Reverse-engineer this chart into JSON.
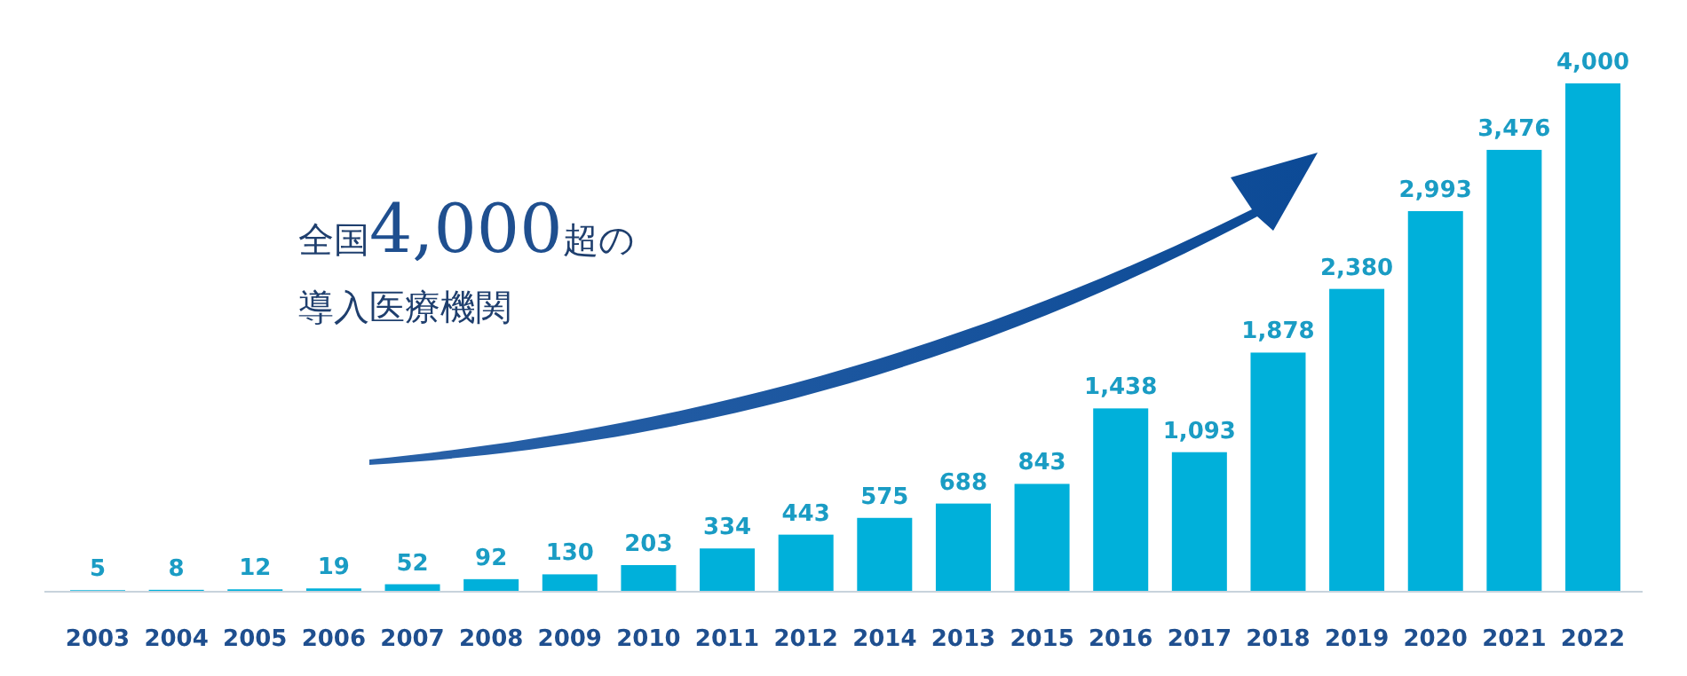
{
  "chart_data": {
    "type": "bar",
    "categories": [
      "2003",
      "2004",
      "2005",
      "2006",
      "2007",
      "2008",
      "2009",
      "2010",
      "2011",
      "2012",
      "2014",
      "2013",
      "2015",
      "2016",
      "2017",
      "2018",
      "2019",
      "2020",
      "2021",
      "2022"
    ],
    "values": [
      5,
      8,
      12,
      19,
      52,
      92,
      130,
      203,
      334,
      443,
      575,
      688,
      843,
      1438,
      1093,
      1878,
      2380,
      2993,
      3476,
      4000
    ],
    "color": "#00b0da",
    "value_labels": [
      "5",
      "8",
      "12",
      "19",
      "52",
      "92",
      "130",
      "203",
      "334",
      "443",
      "575",
      "688",
      "843",
      "1,438",
      "1,093",
      "1,878",
      "2,380",
      "2,993",
      "3,476",
      "4,000"
    ],
    "annotations": [
      "全国4,000超の",
      "導入医療機関"
    ]
  }
}
